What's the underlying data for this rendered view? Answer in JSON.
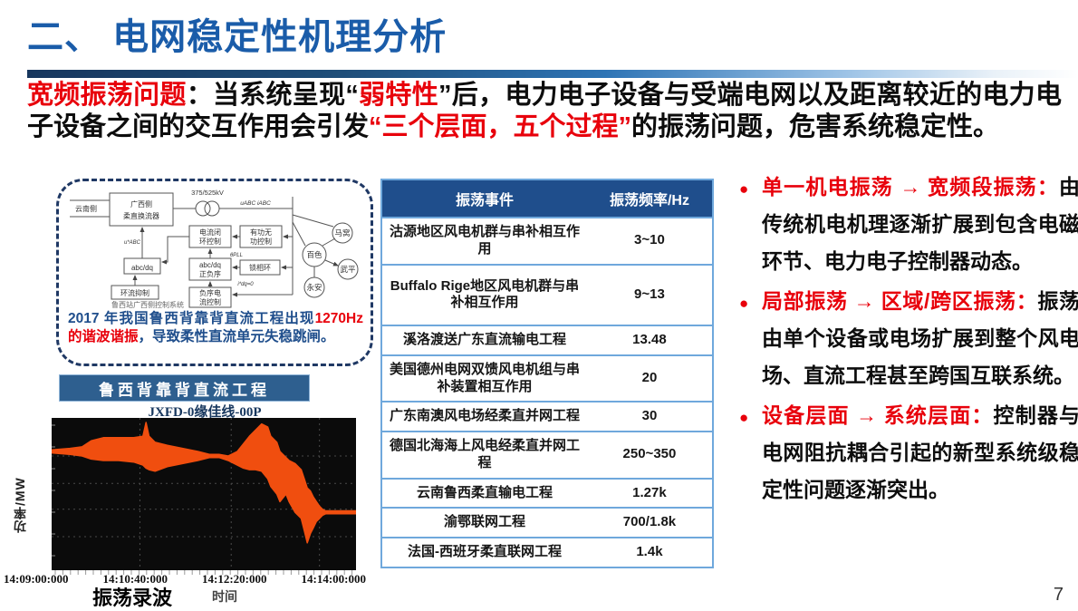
{
  "page": {
    "number": "7"
  },
  "header": {
    "title": "二、 电网稳定性机理分析",
    "accent_color": "#1A5CA9"
  },
  "colors": {
    "title_blue": "#1A5CA9",
    "highlight_red": "#E8000B",
    "table_header_blue": "#1F4E8C",
    "banner_blue": "#2E5F8F",
    "caption_blue": "#1F4E8C",
    "wave_orange": "#F04E0F",
    "chart_bg": "#0B0B0B",
    "table_border": "#6FA8DC"
  },
  "intro": {
    "segments": [
      {
        "t": "宽频振荡问题"
      },
      {
        "t": "：当系统呈现“"
      },
      {
        "t": "弱特性"
      },
      {
        "t": "”后，电力电子设备与受端电网以及距离较近的电力电子设备之间的交互作用会引发"
      },
      {
        "t": "“三个层面，五个过程”"
      },
      {
        "t": "的振荡问题，危害系统稳定性。"
      }
    ]
  },
  "case_box": {
    "caption_segments": [
      {
        "t": "2017 年我国鲁西背靠背直流工程出现"
      },
      {
        "t": "1270Hz 的谐波谐振"
      },
      {
        "t": "，导致柔性直流单元失稳跳闸。"
      }
    ],
    "banner": "鲁西背靠背直流工程"
  },
  "diagram": {
    "caption": "鲁西站广西侧控制系统",
    "labels": {
      "yunnan": "云南侧",
      "conv1": "广西侧",
      "conv2": "柔直换流器",
      "kv": "375/525kV",
      "line_uv": "uABC iABC",
      "cur1": "电流闭",
      "cur2": "环控制",
      "pq1": "有功无",
      "pq2": "功控制",
      "abcdq": "abc/dq",
      "seq1": "abc/dq",
      "seq2": "正负序",
      "pll": "锁相环",
      "circ": "环流抑制",
      "neg1": "负序电",
      "neg2": "流控制",
      "uref": "u*ABC",
      "theta": "θPLL",
      "idqref": "i*dq=0",
      "n_baise": "百色",
      "n_mawo": "马窝",
      "n_wuping": "武平",
      "n_yongan": "永安"
    }
  },
  "table": {
    "headers": [
      "振荡事件",
      "振荡频率/Hz"
    ],
    "rows": [
      {
        "event": "沽源地区风电机群与串补相互作用",
        "freq": "3~10"
      },
      {
        "event": "Buffalo Rige地区风电机群与串补相互作用",
        "freq": "9~13"
      },
      {
        "event": "溪洛渡送广东直流输电工程",
        "freq": "13.48"
      },
      {
        "event": "美国德州电网双馈风电机组与串补装置相互作用",
        "freq": "20"
      },
      {
        "event": "广东南澳风电场经柔直并网工程",
        "freq": "30"
      },
      {
        "event": "德国北海海上风电经柔直并网工程",
        "freq": "250~350"
      },
      {
        "event": "云南鲁西柔直输电工程",
        "freq": "1.27k"
      },
      {
        "event": "渝鄂联网工程",
        "freq": "700/1.8k"
      },
      {
        "event": "法国-西班牙柔直联网工程",
        "freq": "1.4k"
      }
    ]
  },
  "bullets": {
    "items": [
      {
        "head": "单一机电振荡 → 宽频段振荡：",
        "body": "由传统机电机理逐渐扩展到包含电磁环节、电力电子控制器动态。"
      },
      {
        "head": "局部振荡 → 区域/跨区振荡：",
        "body": "振荡由单个设备或电场扩展到整个风电场、直流工程甚至跨国互联系统。"
      },
      {
        "head": "设备层面 → 系统层面：",
        "body": "控制器与电网阻抗耦合引起的新型系统级稳定性问题逐渐突出。"
      }
    ]
  },
  "chart_data": {
    "type": "area",
    "title": "JXFD-0缘佳线-00P",
    "ylabel": "功率/MW",
    "xlabel": "时间",
    "caption": "振荡录波",
    "x_ticks": [
      "14:09:00:000",
      "14:10:40:000",
      "14:12:20:000",
      "14:14:00:000"
    ],
    "bg": "#0B0B0B",
    "series_color": "#F04E0F",
    "grid": {
      "h_pct": [
        25,
        43,
        60,
        78
      ],
      "v_pct": [
        29,
        59,
        88
      ]
    },
    "envelope_note": "power oscillation band vs time; [x%, upper%, lower%] of plot area, y measured from top (no numeric y scale shown on slide)",
    "envelope": [
      [
        0,
        21,
        23
      ],
      [
        6,
        20,
        24
      ],
      [
        10,
        19,
        25
      ],
      [
        13,
        15,
        27
      ],
      [
        17,
        13,
        28
      ],
      [
        22,
        13,
        28
      ],
      [
        27,
        13,
        29
      ],
      [
        30,
        12,
        31
      ],
      [
        31,
        3,
        33
      ],
      [
        32,
        12,
        34
      ],
      [
        34,
        16,
        35
      ],
      [
        38,
        18,
        32
      ],
      [
        43,
        20,
        30
      ],
      [
        48,
        22,
        28
      ],
      [
        52,
        24,
        26
      ],
      [
        55,
        24,
        26
      ],
      [
        58,
        25,
        28
      ],
      [
        61,
        22,
        31
      ],
      [
        63,
        17,
        33
      ],
      [
        65,
        12,
        34
      ],
      [
        67,
        8,
        34
      ],
      [
        69,
        4,
        35
      ],
      [
        71,
        6,
        40
      ],
      [
        72,
        12,
        45
      ],
      [
        74,
        16,
        50
      ],
      [
        75,
        22,
        55
      ],
      [
        77,
        26,
        50
      ],
      [
        78,
        28,
        55
      ],
      [
        80,
        30,
        62
      ],
      [
        82,
        34,
        66
      ],
      [
        83,
        40,
        74
      ],
      [
        84,
        46,
        82
      ],
      [
        85,
        48,
        76
      ],
      [
        86,
        52,
        72
      ],
      [
        87,
        55,
        68
      ],
      [
        88,
        58,
        66
      ],
      [
        89,
        60,
        64
      ],
      [
        90,
        61,
        63
      ],
      [
        100,
        61,
        63
      ]
    ]
  }
}
